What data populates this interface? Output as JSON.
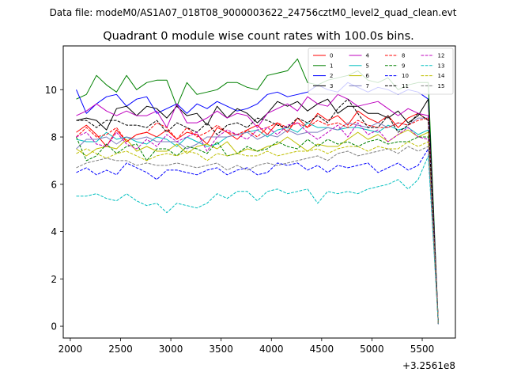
{
  "page": {
    "suptitle": "Data file: modeM0/AS1A07_018T08_9000003622_24756cztM0_level2_quad_clean.evt"
  },
  "chart_data": {
    "type": "line",
    "title": "Quadrant 0 module wise count rates with 100.0s bins.",
    "xlabel": "",
    "ylabel": "",
    "offset_label": "+3.2561e8",
    "xlim": [
      1930,
      5830
    ],
    "ylim": [
      -0.5,
      11.85
    ],
    "x_ticks": [
      2000,
      2500,
      3000,
      3500,
      4000,
      4500,
      5000,
      5500
    ],
    "x_tick_labels": [
      "2000",
      "2500",
      "3000",
      "3500",
      "4000",
      "4500",
      "5000",
      "5500"
    ],
    "y_ticks": [
      0,
      2,
      4,
      6,
      8,
      10
    ],
    "y_tick_labels": [
      "0",
      "2",
      "4",
      "6",
      "8",
      "10"
    ],
    "x": [
      2060,
      2160,
      2260,
      2360,
      2460,
      2560,
      2660,
      2760,
      2860,
      2960,
      3060,
      3160,
      3260,
      3360,
      3460,
      3560,
      3660,
      3760,
      3860,
      3960,
      4060,
      4160,
      4260,
      4360,
      4460,
      4560,
      4660,
      4760,
      4860,
      4960,
      5060,
      5160,
      5260,
      5360,
      5460,
      5560,
      5660
    ],
    "legend_location": "upper right",
    "legend_columns": 4,
    "series": [
      {
        "name": "0",
        "color": "#ff0000",
        "dash": "solid",
        "values": [
          8.2,
          8.5,
          8.1,
          7.6,
          8.3,
          7.8,
          8.1,
          8.2,
          8.0,
          8.3,
          7.9,
          8.2,
          8.1,
          7.7,
          8.4,
          8.2,
          7.9,
          8.3,
          8.5,
          8.1,
          8.6,
          8.2,
          8.8,
          8.4,
          9.0,
          8.7,
          8.9,
          8.5,
          9.1,
          8.8,
          8.6,
          8.9,
          8.4,
          8.8,
          9.0,
          8.7,
          0.1
        ]
      },
      {
        "name": "1",
        "color": "#008000",
        "dash": "solid",
        "values": [
          9.6,
          9.8,
          10.6,
          10.2,
          9.9,
          10.6,
          10.0,
          10.3,
          10.4,
          10.4,
          9.3,
          10.3,
          9.8,
          9.9,
          10.0,
          10.3,
          10.3,
          10.1,
          10.0,
          10.6,
          10.7,
          10.8,
          11.3,
          10.3,
          10.2,
          10.4,
          10.5,
          10.6,
          10.8,
          10.4,
          10.3,
          10.5,
          10.0,
          10.2,
          10.3,
          10.3,
          0.1
        ]
      },
      {
        "name": "2",
        "color": "#0000ff",
        "dash": "solid",
        "values": [
          10.0,
          9.0,
          9.4,
          9.7,
          9.8,
          9.3,
          9.6,
          9.7,
          9.0,
          9.2,
          9.4,
          9.0,
          9.4,
          9.2,
          9.5,
          9.3,
          9.1,
          9.2,
          9.4,
          9.8,
          9.9,
          9.7,
          9.8,
          9.9,
          10.2,
          10.0,
          9.9,
          10.3,
          10.1,
          9.9,
          10.1,
          10.0,
          9.8,
          10.0,
          9.9,
          9.6,
          0.1
        ]
      },
      {
        "name": "3",
        "color": "#000000",
        "dash": "solid",
        "values": [
          8.7,
          8.8,
          8.7,
          8.3,
          9.2,
          9.3,
          8.9,
          9.3,
          9.2,
          8.8,
          9.3,
          8.9,
          9.0,
          8.5,
          9.3,
          8.8,
          9.2,
          9.0,
          8.6,
          9.0,
          9.5,
          9.3,
          9.5,
          9.1,
          9.4,
          9.6,
          9.0,
          9.3,
          9.3,
          9.0,
          9.0,
          8.8,
          9.1,
          8.6,
          8.9,
          9.6,
          0.1
        ]
      },
      {
        "name": "4",
        "color": "#bf00bf",
        "dash": "solid",
        "values": [
          8.9,
          9.1,
          9.4,
          9.1,
          8.9,
          9.1,
          8.9,
          8.9,
          9.1,
          8.4,
          9.4,
          8.6,
          8.6,
          8.8,
          9.1,
          8.8,
          9.0,
          8.9,
          8.4,
          9.0,
          9.2,
          9.4,
          9.1,
          9.7,
          9.4,
          9.3,
          9.8,
          9.6,
          9.3,
          9.4,
          9.5,
          9.2,
          8.9,
          9.2,
          9.0,
          8.9,
          0.1
        ]
      },
      {
        "name": "5",
        "color": "#00bfbf",
        "dash": "solid",
        "values": [
          7.9,
          7.8,
          7.8,
          8.2,
          7.9,
          8.0,
          7.8,
          7.7,
          8.0,
          7.9,
          7.6,
          8.0,
          7.8,
          7.6,
          7.7,
          8.0,
          8.1,
          8.2,
          8.3,
          8.0,
          8.3,
          8.4,
          8.2,
          8.6,
          8.4,
          8.4,
          8.3,
          8.4,
          8.4,
          8.3,
          8.2,
          8.5,
          8.3,
          8.4,
          8.1,
          8.3,
          0.1
        ]
      },
      {
        "name": "6",
        "color": "#bfbf00",
        "dash": "solid",
        "values": [
          7.5,
          7.2,
          7.5,
          7.6,
          7.5,
          7.9,
          7.4,
          7.6,
          7.4,
          7.4,
          7.7,
          7.3,
          7.6,
          7.7,
          7.5,
          7.8,
          7.3,
          7.5,
          7.4,
          7.6,
          7.7,
          8.0,
          7.7,
          7.4,
          7.7,
          7.6,
          7.6,
          7.9,
          8.2,
          7.9,
          8.1,
          7.8,
          8.1,
          8.3,
          8.0,
          8.2,
          0.1
        ]
      },
      {
        "name": "7",
        "color": "#7f7fbf",
        "dash": "solid",
        "values": [
          7.5,
          7.9,
          7.9,
          8.0,
          7.7,
          8.0,
          7.9,
          8.0,
          7.8,
          7.8,
          7.8,
          7.5,
          7.7,
          8.0,
          8.0,
          8.0,
          8.1,
          8.2,
          7.9,
          8.1,
          8.0,
          8.3,
          8.1,
          8.2,
          8.2,
          8.4,
          8.3,
          8.6,
          8.5,
          8.4,
          8.6,
          8.4,
          8.6,
          8.5,
          8.8,
          8.8,
          0.1
        ]
      },
      {
        "name": "8",
        "color": "#ff0000",
        "dash": "dashed",
        "values": [
          8.0,
          8.4,
          8.0,
          8.1,
          8.4,
          7.8,
          8.1,
          8.2,
          8.6,
          8.4,
          7.9,
          8.4,
          8.0,
          8.2,
          8.5,
          8.2,
          8.1,
          8.3,
          8.0,
          8.4,
          8.6,
          8.4,
          8.6,
          8.4,
          8.7,
          8.5,
          8.6,
          8.4,
          8.7,
          8.5,
          8.4,
          8.4,
          8.6,
          8.5,
          8.7,
          8.8,
          0.1
        ]
      },
      {
        "name": "9",
        "color": "#008000",
        "dash": "dashed",
        "values": [
          8.0,
          7.0,
          7.2,
          7.7,
          7.3,
          7.6,
          7.7,
          7.0,
          7.5,
          7.5,
          7.2,
          7.6,
          7.5,
          7.3,
          7.8,
          7.2,
          7.3,
          7.6,
          7.4,
          7.5,
          7.8,
          7.6,
          7.5,
          7.9,
          7.6,
          7.9,
          7.7,
          7.8,
          7.6,
          7.8,
          7.9,
          7.7,
          7.8,
          7.8,
          8.0,
          8.0,
          0.1
        ]
      },
      {
        "name": "10",
        "color": "#0000ff",
        "dash": "dashed",
        "values": [
          6.5,
          6.7,
          6.4,
          6.6,
          6.4,
          6.9,
          6.7,
          6.5,
          6.2,
          6.6,
          6.6,
          6.5,
          6.4,
          6.6,
          6.7,
          6.4,
          6.6,
          6.7,
          6.4,
          6.5,
          6.9,
          6.8,
          6.9,
          6.6,
          6.8,
          6.5,
          6.8,
          6.7,
          6.8,
          6.9,
          6.5,
          6.7,
          6.9,
          6.6,
          6.8,
          7.5,
          0.1
        ]
      },
      {
        "name": "11",
        "color": "#000000",
        "dash": "dashed",
        "values": [
          8.7,
          8.7,
          8.4,
          8.7,
          8.7,
          8.5,
          8.5,
          8.4,
          8.7,
          8.2,
          8.6,
          8.4,
          8.2,
          8.6,
          8.1,
          8.5,
          8.6,
          8.4,
          8.8,
          8.7,
          8.5,
          8.4,
          8.8,
          8.6,
          8.9,
          8.6,
          9.2,
          9.6,
          9.0,
          8.4,
          8.4,
          8.9,
          8.2,
          8.5,
          9.0,
          8.7,
          0.1
        ]
      },
      {
        "name": "12",
        "color": "#bf00bf",
        "dash": "dashed",
        "values": [
          8.0,
          8.2,
          7.7,
          7.6,
          8.2,
          7.7,
          7.5,
          7.9,
          7.6,
          8.1,
          7.8,
          8.0,
          8.2,
          7.4,
          8.0,
          8.3,
          8.1,
          7.9,
          8.3,
          8.4,
          8.1,
          8.5,
          8.6,
          8.2,
          7.9,
          8.2,
          8.5,
          8.0,
          8.6,
          8.1,
          8.3,
          7.8,
          8.1,
          8.4,
          8.0,
          7.9,
          0.1
        ]
      },
      {
        "name": "13",
        "color": "#00bfbf",
        "dash": "dashed",
        "values": [
          5.5,
          5.5,
          5.6,
          5.4,
          5.3,
          5.6,
          5.3,
          5.1,
          5.2,
          4.8,
          5.2,
          5.1,
          5.0,
          5.2,
          5.6,
          5.4,
          5.7,
          5.7,
          5.3,
          5.7,
          5.8,
          5.6,
          5.7,
          5.8,
          5.2,
          5.7,
          5.6,
          5.7,
          5.6,
          5.8,
          5.9,
          6.0,
          6.2,
          5.8,
          6.2,
          7.2,
          0.1
        ]
      },
      {
        "name": "14",
        "color": "#bfbf00",
        "dash": "dashed",
        "values": [
          7.3,
          7.5,
          7.3,
          7.1,
          7.3,
          7.4,
          7.2,
          7.0,
          7.2,
          7.3,
          7.2,
          7.4,
          7.3,
          7.0,
          7.3,
          7.2,
          7.3,
          7.2,
          7.2,
          7.4,
          7.2,
          7.3,
          7.4,
          7.4,
          7.5,
          7.3,
          7.5,
          7.6,
          7.6,
          7.4,
          7.6,
          7.5,
          7.5,
          7.8,
          7.6,
          7.8,
          0.1
        ]
      },
      {
        "name": "15",
        "color": "#7f7f7f",
        "dash": "dashed",
        "values": [
          6.7,
          6.9,
          7.0,
          7.1,
          7.0,
          7.0,
          6.8,
          6.9,
          6.8,
          6.8,
          6.9,
          6.8,
          6.7,
          6.8,
          6.9,
          6.6,
          6.8,
          6.6,
          6.8,
          6.9,
          6.8,
          6.9,
          7.0,
          7.1,
          7.2,
          7.0,
          7.3,
          7.4,
          7.2,
          7.3,
          7.4,
          7.5,
          7.3,
          7.6,
          7.4,
          7.6,
          0.1
        ]
      }
    ]
  }
}
